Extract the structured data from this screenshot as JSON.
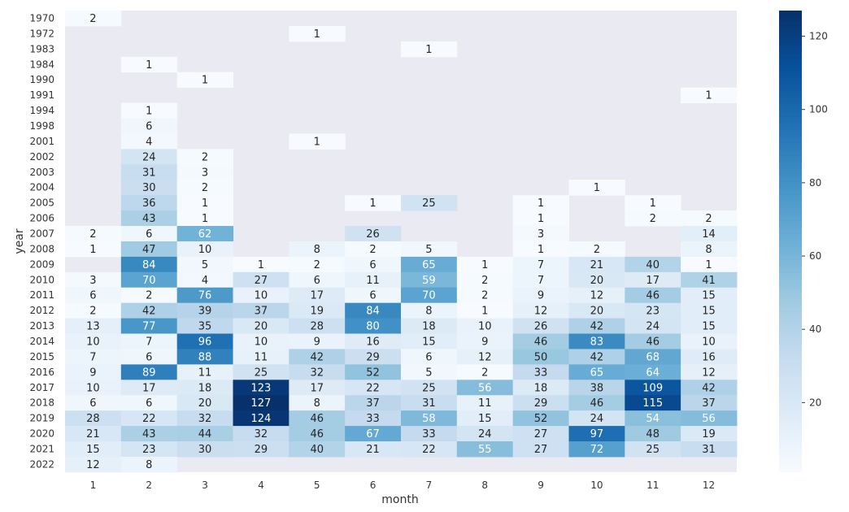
{
  "chart_data": {
    "type": "heatmap",
    "xlabel": "month",
    "ylabel": "year",
    "x": [
      "1",
      "2",
      "3",
      "4",
      "5",
      "6",
      "7",
      "8",
      "9",
      "10",
      "11",
      "12"
    ],
    "y": [
      "1970",
      "1972",
      "1983",
      "1984",
      "1990",
      "1991",
      "1994",
      "1998",
      "2001",
      "2002",
      "2003",
      "2004",
      "2005",
      "2006",
      "2007",
      "2008",
      "2009",
      "2010",
      "2011",
      "2012",
      "2013",
      "2014",
      "2015",
      "2016",
      "2017",
      "2018",
      "2019",
      "2020",
      "2021",
      "2022"
    ],
    "values": [
      [
        2,
        null,
        null,
        null,
        null,
        null,
        null,
        null,
        null,
        null,
        null,
        null
      ],
      [
        null,
        null,
        null,
        null,
        1,
        null,
        null,
        null,
        null,
        null,
        null,
        null
      ],
      [
        null,
        null,
        null,
        null,
        null,
        null,
        1,
        null,
        null,
        null,
        null,
        null
      ],
      [
        null,
        1,
        null,
        null,
        null,
        null,
        null,
        null,
        null,
        null,
        null,
        null
      ],
      [
        null,
        null,
        1,
        null,
        null,
        null,
        null,
        null,
        null,
        null,
        null,
        null
      ],
      [
        null,
        null,
        null,
        null,
        null,
        null,
        null,
        null,
        null,
        null,
        null,
        1
      ],
      [
        null,
        1,
        null,
        null,
        null,
        null,
        null,
        null,
        null,
        null,
        null,
        null
      ],
      [
        null,
        6,
        null,
        null,
        null,
        null,
        null,
        null,
        null,
        null,
        null,
        null
      ],
      [
        null,
        4,
        null,
        null,
        1,
        null,
        null,
        null,
        null,
        null,
        null,
        null
      ],
      [
        null,
        24,
        2,
        null,
        null,
        null,
        null,
        null,
        null,
        null,
        null,
        null
      ],
      [
        null,
        31,
        3,
        null,
        null,
        null,
        null,
        null,
        null,
        null,
        null,
        null
      ],
      [
        null,
        30,
        2,
        null,
        null,
        null,
        null,
        null,
        null,
        1,
        null,
        null
      ],
      [
        null,
        36,
        1,
        null,
        null,
        1,
        25,
        null,
        1,
        null,
        1,
        null
      ],
      [
        null,
        43,
        1,
        null,
        null,
        null,
        null,
        null,
        1,
        null,
        2,
        2
      ],
      [
        2,
        6,
        62,
        null,
        null,
        26,
        null,
        null,
        3,
        null,
        null,
        14
      ],
      [
        1,
        47,
        10,
        null,
        8,
        2,
        5,
        null,
        1,
        2,
        null,
        8
      ],
      [
        null,
        84,
        5,
        1,
        2,
        6,
        65,
        1,
        7,
        21,
        40,
        1
      ],
      [
        3,
        70,
        4,
        27,
        6,
        11,
        59,
        2,
        7,
        20,
        17,
        41
      ],
      [
        6,
        2,
        76,
        10,
        17,
        6,
        70,
        2,
        9,
        12,
        46,
        15
      ],
      [
        2,
        42,
        39,
        37,
        19,
        84,
        8,
        1,
        12,
        20,
        23,
        15
      ],
      [
        13,
        77,
        35,
        20,
        28,
        80,
        18,
        10,
        26,
        42,
        24,
        15
      ],
      [
        10,
        7,
        96,
        10,
        9,
        16,
        15,
        9,
        46,
        83,
        46,
        10
      ],
      [
        7,
        6,
        88,
        11,
        42,
        29,
        6,
        12,
        50,
        42,
        68,
        16
      ],
      [
        9,
        89,
        11,
        25,
        32,
        52,
        5,
        2,
        33,
        65,
        64,
        12
      ],
      [
        10,
        17,
        18,
        123,
        17,
        22,
        25,
        56,
        18,
        38,
        109,
        42
      ],
      [
        6,
        6,
        20,
        127,
        8,
        37,
        31,
        11,
        29,
        46,
        115,
        37
      ],
      [
        28,
        22,
        32,
        124,
        46,
        33,
        58,
        15,
        52,
        24,
        54,
        56
      ],
      [
        21,
        43,
        44,
        32,
        46,
        67,
        33,
        24,
        27,
        97,
        48,
        19
      ],
      [
        15,
        23,
        30,
        29,
        40,
        21,
        22,
        55,
        27,
        72,
        25,
        31
      ],
      [
        12,
        8,
        null,
        null,
        null,
        null,
        null,
        null,
        null,
        null,
        null,
        null
      ]
    ],
    "colorbar": {
      "ticks": [
        20,
        40,
        60,
        80,
        100,
        120
      ],
      "min": 1,
      "max": 127,
      "colormap": "Blues"
    },
    "missing_color": "#eaeaf2",
    "grid": false
  }
}
